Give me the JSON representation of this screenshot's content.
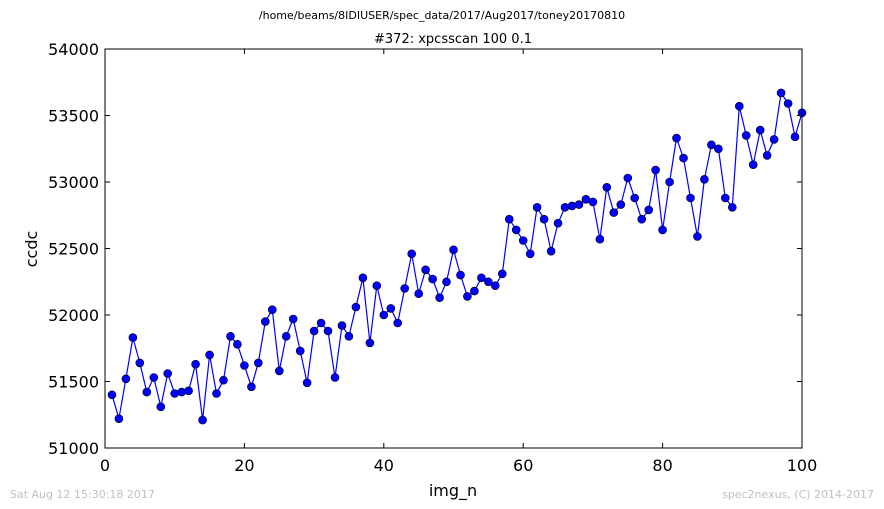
{
  "figure": {
    "suptitle": "/home/beams/8IDIUSER/spec_data/2017/Aug2017/toney20170810",
    "footer_left": "Sat Aug 12 15:30:18 2017",
    "footer_right": "spec2nexus, (C) 2014-2017"
  },
  "chart_data": {
    "type": "line",
    "title": "#372: xpcsscan 100 0.1",
    "xlabel": "img_n",
    "ylabel": "ccdc",
    "xlim": [
      0,
      100
    ],
    "ylim": [
      51000,
      54000
    ],
    "xticks": [
      0,
      20,
      40,
      60,
      80,
      100
    ],
    "yticks": [
      51000,
      51500,
      52000,
      52500,
      53000,
      53500,
      54000
    ],
    "grid": false,
    "line_color": "#0000ff",
    "marker_color": "#0000ff",
    "series": [
      {
        "x": [
          1,
          2,
          3,
          4,
          5,
          6,
          7,
          8,
          9,
          10,
          11,
          12,
          13,
          14,
          15,
          16,
          17,
          18,
          19,
          20,
          21,
          22,
          23,
          24,
          25,
          26,
          27,
          28,
          29,
          30,
          31,
          32,
          33,
          34,
          35,
          36,
          37,
          38,
          39,
          40,
          41,
          42,
          43,
          44,
          45,
          46,
          47,
          48,
          49,
          50,
          51,
          52,
          53,
          54,
          55,
          56,
          57,
          58,
          59,
          60,
          61,
          62,
          63,
          64,
          65,
          66,
          67,
          68,
          69,
          70,
          71,
          72,
          73,
          74,
          75,
          76,
          77,
          78,
          79,
          80,
          81,
          82,
          83,
          84,
          85,
          86,
          87,
          88,
          89,
          90,
          91,
          92,
          93,
          94,
          95,
          96,
          97,
          98,
          99,
          100
        ],
        "y": [
          51400,
          51220,
          51520,
          51830,
          51640,
          51420,
          51530,
          51310,
          51560,
          51410,
          51420,
          51430,
          51630,
          51210,
          51700,
          51410,
          51510,
          51840,
          51780,
          51620,
          51460,
          51640,
          51950,
          52040,
          51580,
          51840,
          51970,
          51730,
          51490,
          51880,
          51940,
          51880,
          51530,
          51920,
          51840,
          52060,
          52280,
          51790,
          52220,
          52000,
          52050,
          51940,
          52200,
          52460,
          52160,
          52340,
          52270,
          52130,
          52250,
          52490,
          52300,
          52140,
          52180,
          52280,
          52250,
          52220,
          52310,
          52720,
          52640,
          52560,
          52460,
          52810,
          52720,
          52480,
          52690,
          52810,
          52820,
          52830,
          52870,
          52850,
          52570,
          52960,
          52770,
          52830,
          53030,
          52880,
          52720,
          52790,
          53090,
          52640,
          53000,
          53330,
          53180,
          52880,
          52590,
          53020,
          53280,
          53250,
          52880,
          52810,
          53570,
          53350,
          53130,
          53390,
          53200,
          53320,
          53670,
          53590,
          53340,
          53520
        ]
      }
    ]
  }
}
